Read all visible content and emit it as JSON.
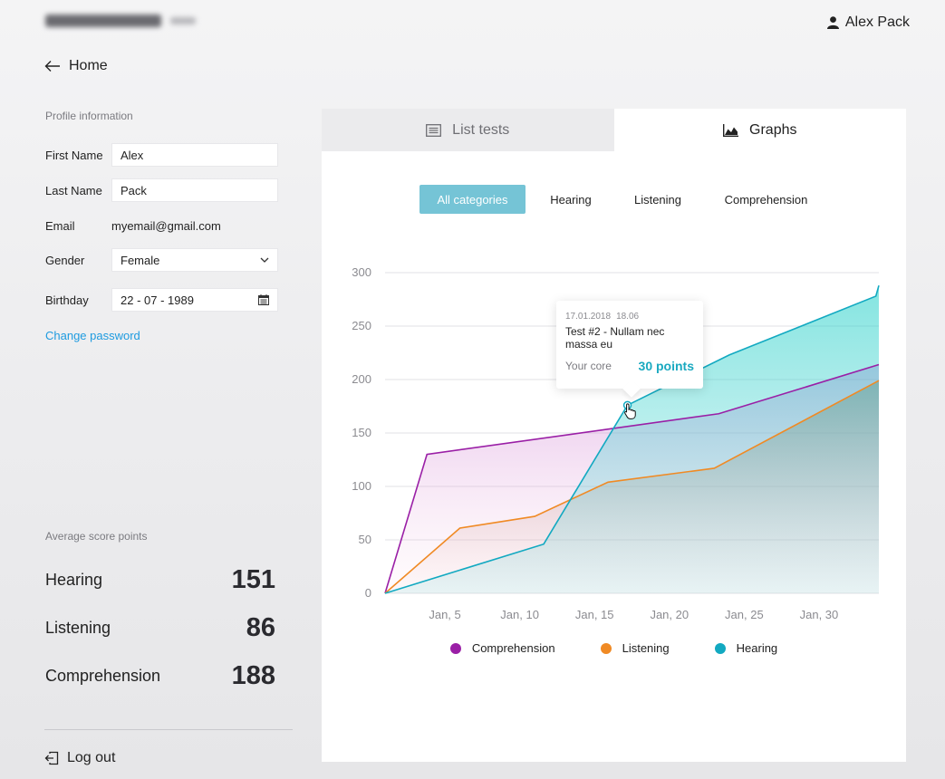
{
  "header": {
    "user_name": "Alex Pack",
    "back_label": "Home"
  },
  "profile": {
    "section_title": "Profile information",
    "first_name_label": "First Name",
    "first_name_value": "Alex",
    "last_name_label": "Last Name",
    "last_name_value": "Pack",
    "email_label": "Email",
    "email_value": "myemail@gmail.com",
    "gender_label": "Gender",
    "gender_value": "Female",
    "birthday_label": "Birthday",
    "birthday_value": "22 - 07 - 1989",
    "change_password": "Change password"
  },
  "scores": {
    "section_title": "Average score points",
    "items": [
      {
        "name": "Hearing",
        "value": "151"
      },
      {
        "name": "Listening",
        "value": "86"
      },
      {
        "name": "Comprehension",
        "value": "188"
      }
    ]
  },
  "logout_label": "Log out",
  "tabs": [
    {
      "label": "List tests",
      "icon": "list-icon",
      "active": false
    },
    {
      "label": "Graphs",
      "icon": "area-chart-icon",
      "active": true
    }
  ],
  "filters": [
    "All categories",
    "Hearing",
    "Listening",
    "Comprehension"
  ],
  "tooltip": {
    "date": "17.01.2018",
    "time": "18.06",
    "title": "Test #2 - Nullam nec massa eu",
    "score_label": "Your core",
    "score_value": "30 points"
  },
  "colors": {
    "comprehension": "#9a1fa6",
    "listening": "#f08a24",
    "hearing": "#12a9c1",
    "accent": "#75c4d6"
  },
  "chart_data": {
    "type": "area",
    "title": "",
    "xlabel": "",
    "ylabel": "",
    "xlim": [
      1,
      34
    ],
    "ylim": [
      0,
      300
    ],
    "y_ticks": [
      0,
      50,
      100,
      150,
      200,
      250,
      300
    ],
    "x_ticks": [
      {
        "label": "Jan, 5",
        "x": 5
      },
      {
        "label": "Jan, 10",
        "x": 10
      },
      {
        "label": "Jan, 15",
        "x": 15
      },
      {
        "label": "Jan, 20",
        "x": 20
      },
      {
        "label": "Jan, 25",
        "x": 25
      },
      {
        "label": "Jan, 30",
        "x": 30
      }
    ],
    "grid": true,
    "legend": "bottom",
    "series": [
      {
        "name": "Comprehension",
        "color": "#9a1fa6",
        "points": [
          [
            1,
            0
          ],
          [
            3.8,
            130
          ],
          [
            23.3,
            168
          ],
          [
            34,
            214
          ]
        ]
      },
      {
        "name": "Listening",
        "color": "#f08a24",
        "points": [
          [
            1,
            0
          ],
          [
            6,
            61
          ],
          [
            11,
            72
          ],
          [
            15.9,
            104
          ],
          [
            23,
            117
          ],
          [
            34,
            199
          ]
        ]
      },
      {
        "name": "Hearing",
        "color": "#12a9c1",
        "points": [
          [
            1,
            0
          ],
          [
            11.6,
            46
          ],
          [
            17.2,
            176
          ],
          [
            24,
            223
          ],
          [
            33.8,
            278
          ],
          [
            34,
            288
          ]
        ]
      }
    ]
  }
}
